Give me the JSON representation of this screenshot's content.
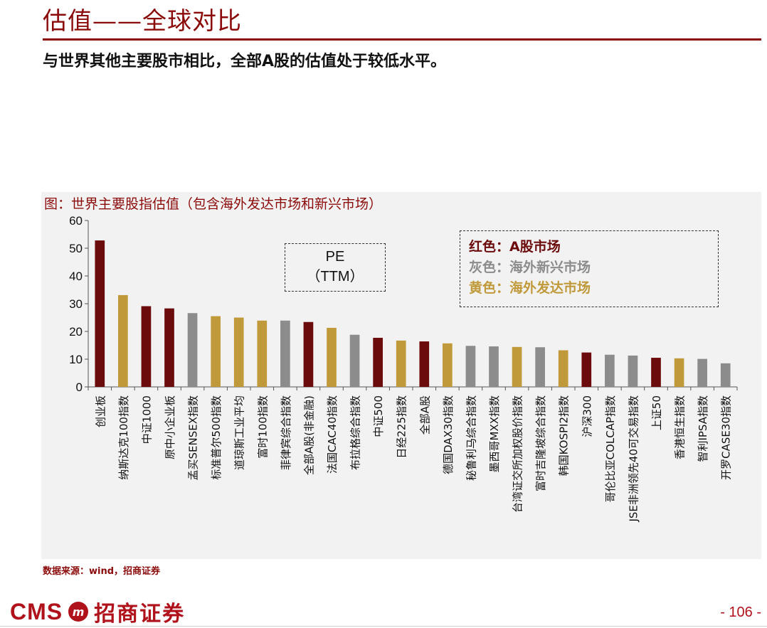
{
  "header": {
    "title": "估值——全球对比",
    "subtitle": "与世界其他主要股市相比，全部A股的估值处于较低水平。"
  },
  "figure": {
    "caption": "图：世界主要股指估值（包含海外发达市场和新兴市场）",
    "pe_box_line1": "PE",
    "pe_box_line2": "（TTM）",
    "legend": [
      {
        "label": "红色：A股市场",
        "color": "#6b0b0b"
      },
      {
        "label": "灰色：海外新兴市场",
        "color": "#8c8c8c"
      },
      {
        "label": "黄色：海外发达市场",
        "color": "#c09a3a"
      }
    ],
    "source": "数据来源：wind，招商证券"
  },
  "footer": {
    "logo_text": "CMS",
    "logo_emblem": "m",
    "logo_cn": "招商证券",
    "page_number": "- 106 -"
  },
  "colors": {
    "a_share": "#6b0b0b",
    "emerging": "#8c8c8c",
    "developed": "#c09a3a",
    "title": "#8b0b0b"
  },
  "chart_data": {
    "type": "bar",
    "title": "",
    "xlabel": "",
    "ylabel": "",
    "ylim": [
      0,
      60
    ],
    "yticks": [
      0,
      10,
      20,
      30,
      40,
      50,
      60
    ],
    "grid": false,
    "categories": [
      "创业板",
      "纳斯达克100指数",
      "中证1000",
      "原中小企业板",
      "孟买SENSEX指数",
      "标准普尔500指数",
      "道琼斯工业平均",
      "富时100指数",
      "菲律宾综合指数",
      "全部A股(非金融)",
      "法国CAC40指数",
      "布拉格综合指数",
      "中证500",
      "日经225指数",
      "全部A股",
      "德国DAX30指数",
      "秘鲁利马综合指数",
      "墨西哥MXX指数",
      "台湾证交所加权股价指数",
      "富时吉隆坡综合指数",
      "韩国KOSPI2指数",
      "沪深300",
      "哥伦比亚COLCAP指数",
      "JSE非洲领先40可交易指数",
      "上证50",
      "香港恒生指数",
      "智利IPSA指数",
      "开罗CASE30指数"
    ],
    "values": [
      52.8,
      33.1,
      29.1,
      28.3,
      26.6,
      25.5,
      25.0,
      23.9,
      23.9,
      23.4,
      21.3,
      18.8,
      17.7,
      16.7,
      16.4,
      15.7,
      14.8,
      14.6,
      14.4,
      14.3,
      13.2,
      12.4,
      11.6,
      11.3,
      10.5,
      10.3,
      10.1,
      8.5
    ],
    "groups": [
      "A",
      "D",
      "A",
      "A",
      "E",
      "D",
      "D",
      "D",
      "E",
      "A",
      "D",
      "E",
      "A",
      "D",
      "A",
      "D",
      "E",
      "E",
      "D",
      "E",
      "D",
      "A",
      "E",
      "E",
      "A",
      "D",
      "E",
      "E"
    ]
  }
}
